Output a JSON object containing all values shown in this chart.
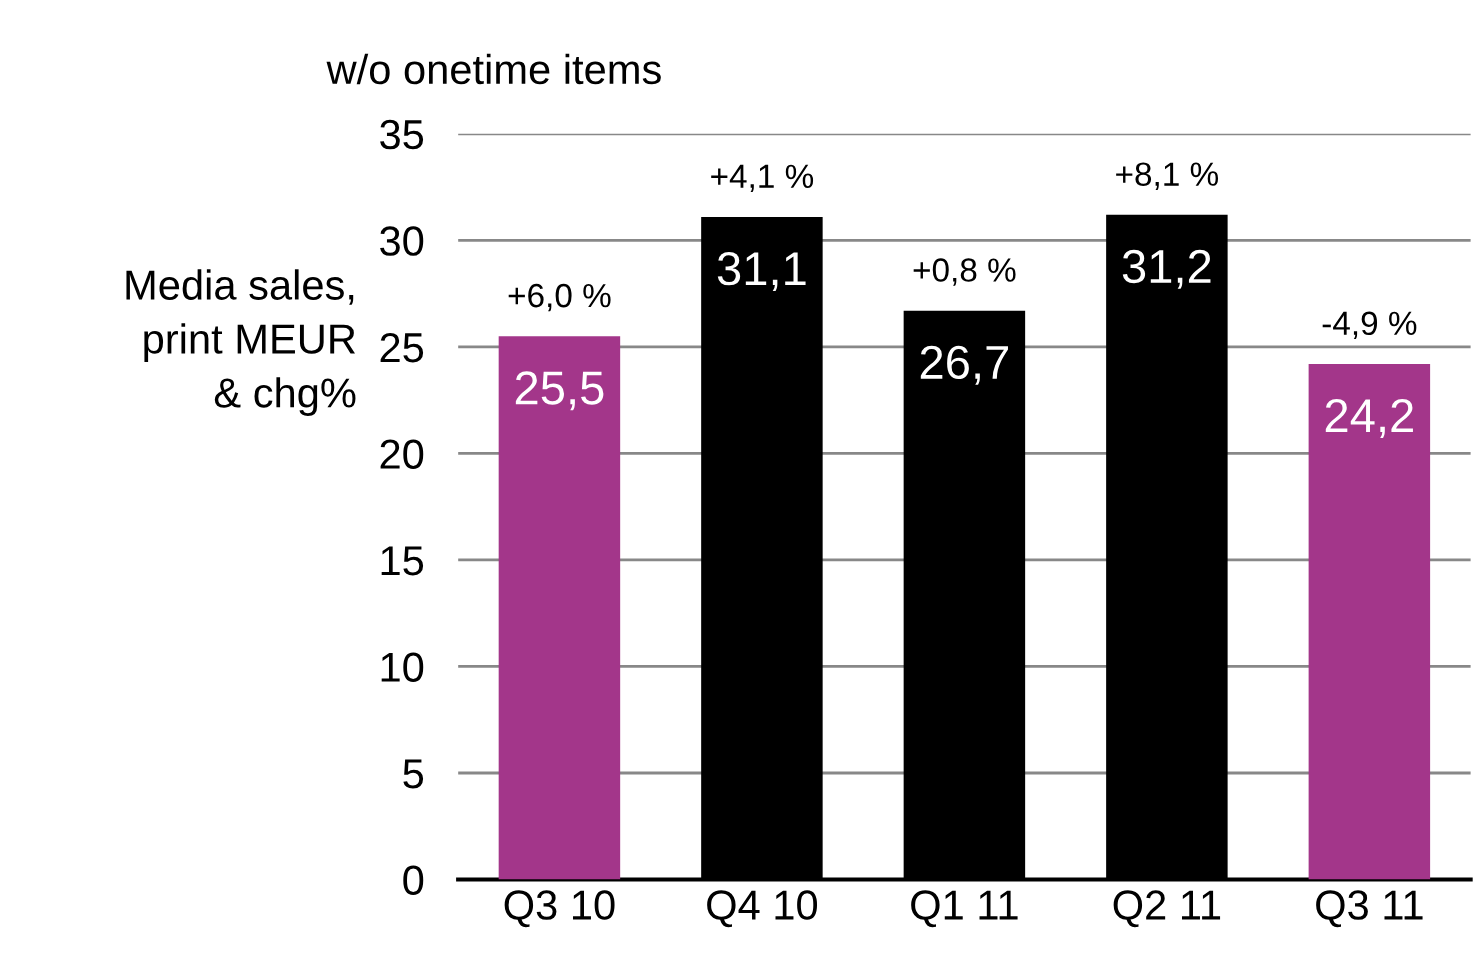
{
  "chart_data": {
    "type": "bar",
    "title": "w/o onetime items",
    "ylabel": "Media sales,\nprint MEUR\n& chg%",
    "categories": [
      "Q3 10",
      "Q4 10",
      "Q1 11",
      "Q2 11",
      "Q3 11"
    ],
    "values": [
      25.5,
      31.1,
      26.7,
      31.2,
      24.2
    ],
    "colors": [
      "#a3368a",
      "#000000",
      "#000000",
      "#000000",
      "#a3368a"
    ],
    "value_labels": [
      "25,5",
      "31,1",
      "26,7",
      "31,2",
      "24,2"
    ],
    "annotations": [
      {
        "text": "+6,0 %",
        "x": "Q3 10",
        "y": 25.5
      },
      {
        "text": "+4,1 %",
        "x": "Q4 10",
        "y": 31.1
      },
      {
        "text": "+0,8 %",
        "x": "Q1 11",
        "y": 26.7
      },
      {
        "text": "+8,1 %",
        "x": "Q2 11",
        "y": 31.2
      },
      {
        "text": "-4,9 %",
        "x": "Q3 11",
        "y": 24.2
      }
    ],
    "ylim": [
      0,
      35
    ],
    "yticks": [
      0,
      5,
      10,
      15,
      20,
      25,
      30,
      35
    ],
    "grid": "y",
    "legend": false
  }
}
